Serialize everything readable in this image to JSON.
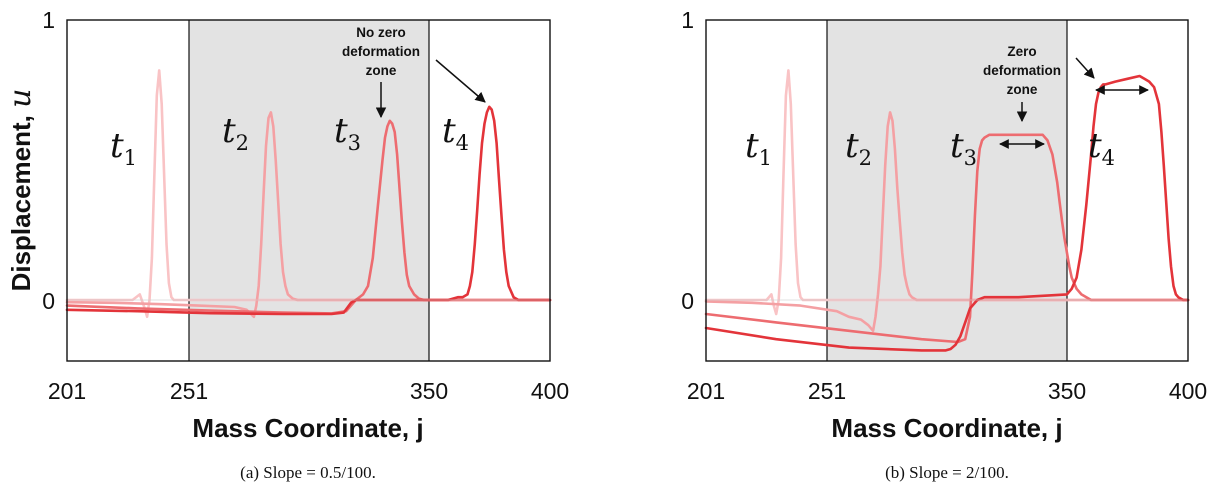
{
  "chart_data": [
    {
      "type": "line",
      "caption": "(a) Slope = 0.5/100.",
      "xlabel": "Mass Coordinate, j",
      "ylabel": "Displacement, ",
      "ylabel_symbol": "u",
      "xlim": [
        201,
        400
      ],
      "ylim": [
        -0.2,
        1
      ],
      "xticks": [
        201,
        251,
        350,
        400
      ],
      "yticks": [
        0,
        1
      ],
      "shaded_region": [
        251,
        350
      ],
      "grid": false,
      "series": [
        {
          "label_main": "t",
          "label_sub": "1",
          "color": "#f9c3c5",
          "x": [
            201,
            215,
            228,
            231,
            233,
            234,
            235,
            236,
            237,
            238,
            239,
            240,
            241,
            242,
            243,
            244,
            245,
            247,
            250,
            253,
            256,
            260,
            270,
            280,
            300,
            320,
            350,
            400
          ],
          "y": [
            0.0,
            0.0,
            0.0,
            0.02,
            -0.03,
            -0.06,
            0.0,
            0.15,
            0.45,
            0.73,
            0.82,
            0.7,
            0.45,
            0.2,
            0.06,
            0.01,
            0.0,
            0.0,
            0.0,
            0.0,
            0.0,
            0.0,
            0.0,
            0.0,
            0.0,
            0.0,
            0.0,
            0.0
          ]
        },
        {
          "label_main": "t",
          "label_sub": "2",
          "color": "#f4a0a3",
          "x": [
            201,
            220,
            240,
            255,
            270,
            275,
            278,
            279,
            280,
            281,
            282,
            283,
            284,
            285,
            286,
            287,
            288,
            289,
            290,
            291,
            292,
            294,
            296,
            300,
            320,
            350,
            400
          ],
          "y": [
            -0.008,
            -0.01,
            -0.015,
            -0.02,
            -0.025,
            -0.035,
            -0.06,
            -0.02,
            0.05,
            0.2,
            0.38,
            0.55,
            0.65,
            0.67,
            0.62,
            0.5,
            0.35,
            0.2,
            0.1,
            0.05,
            0.02,
            0.005,
            0.0,
            0.0,
            0.0,
            0.0,
            0.0
          ]
        },
        {
          "label_main": "t",
          "label_sub": "3",
          "color": "#ed6c70",
          "x": [
            201,
            230,
            260,
            290,
            310,
            316,
            320,
            323,
            325,
            327,
            329,
            331,
            332,
            333,
            334,
            335,
            336,
            337,
            338,
            339,
            340,
            341,
            342,
            344,
            346,
            348,
            350,
            400
          ],
          "y": [
            -0.02,
            -0.03,
            -0.038,
            -0.045,
            -0.048,
            -0.04,
            0.0,
            0.02,
            0.05,
            0.15,
            0.33,
            0.5,
            0.58,
            0.62,
            0.64,
            0.63,
            0.6,
            0.52,
            0.4,
            0.28,
            0.17,
            0.09,
            0.05,
            0.02,
            0.005,
            0.0,
            0.0,
            0.0
          ]
        },
        {
          "label_main": "t",
          "label_sub": "4",
          "color": "#e3343a",
          "x": [
            201,
            230,
            260,
            290,
            310,
            315,
            318,
            320,
            325,
            350,
            358,
            362,
            364,
            366,
            367,
            368,
            369,
            370,
            371,
            372,
            373,
            374,
            375,
            376,
            377,
            378,
            379,
            380,
            381,
            382,
            383,
            385,
            387,
            390,
            400
          ],
          "y": [
            -0.035,
            -0.04,
            -0.047,
            -0.05,
            -0.05,
            -0.045,
            -0.01,
            0.0,
            0.0,
            0.0,
            0.0,
            0.01,
            0.01,
            0.02,
            0.05,
            0.1,
            0.2,
            0.32,
            0.45,
            0.56,
            0.63,
            0.67,
            0.69,
            0.68,
            0.64,
            0.56,
            0.43,
            0.3,
            0.18,
            0.1,
            0.05,
            0.01,
            0.0,
            0.0,
            0.0
          ]
        }
      ],
      "annotations": [
        {
          "lines": [
            "No zero",
            "deformation",
            "zone"
          ]
        }
      ]
    },
    {
      "type": "line",
      "caption": "(b) Slope = 2/100.",
      "xlabel": "Mass Coordinate, j",
      "xlim": [
        201,
        400
      ],
      "ylim": [
        -0.2,
        1
      ],
      "xticks": [
        201,
        251,
        350,
        400
      ],
      "yticks": [
        0,
        1
      ],
      "shaded_region": [
        251,
        350
      ],
      "grid": false,
      "series": [
        {
          "label_main": "t",
          "label_sub": "1",
          "color": "#f9c3c5",
          "x": [
            201,
            215,
            226,
            228,
            229,
            230,
            231,
            232,
            233,
            234,
            235,
            236,
            237,
            238,
            239,
            240,
            241,
            243,
            246,
            250,
            400
          ],
          "y": [
            0.0,
            0.0,
            0.0,
            0.02,
            -0.02,
            -0.05,
            0.0,
            0.15,
            0.45,
            0.73,
            0.82,
            0.7,
            0.45,
            0.2,
            0.06,
            0.01,
            0.0,
            0.0,
            0.0,
            0.0,
            0.0
          ]
        },
        {
          "label_main": "t",
          "label_sub": "2",
          "color": "#f4a0a3",
          "x": [
            201,
            220,
            240,
            255,
            260,
            265,
            268,
            270,
            271,
            272,
            273,
            274,
            275,
            276,
            277,
            278,
            279,
            280,
            281,
            282,
            283,
            284,
            285,
            286,
            288,
            290,
            300,
            400
          ],
          "y": [
            -0.005,
            -0.01,
            -0.02,
            -0.04,
            -0.06,
            -0.07,
            -0.09,
            -0.11,
            -0.06,
            0.02,
            0.12,
            0.3,
            0.48,
            0.62,
            0.67,
            0.64,
            0.54,
            0.4,
            0.28,
            0.17,
            0.09,
            0.05,
            0.02,
            0.01,
            0.0,
            0.0,
            0.0,
            0.0
          ]
        },
        {
          "label_main": "t",
          "label_sub": "3",
          "color": "#ed6c70",
          "x": [
            201,
            230,
            260,
            290,
            305,
            308,
            310,
            311,
            312,
            313,
            314,
            315,
            316,
            318,
            320,
            330,
            340,
            342,
            344,
            346,
            347,
            348,
            349,
            350,
            351,
            352,
            354,
            356,
            360,
            400
          ],
          "y": [
            -0.05,
            -0.08,
            -0.11,
            -0.14,
            -0.15,
            -0.14,
            -0.06,
            0.1,
            0.3,
            0.46,
            0.54,
            0.57,
            0.58,
            0.59,
            0.59,
            0.59,
            0.59,
            0.57,
            0.52,
            0.42,
            0.35,
            0.28,
            0.22,
            0.17,
            0.12,
            0.08,
            0.04,
            0.02,
            0.0,
            0.0
          ]
        },
        {
          "label_main": "t",
          "label_sub": "4",
          "color": "#e3343a",
          "x": [
            201,
            230,
            260,
            290,
            300,
            302,
            304,
            306,
            308,
            310,
            313,
            316,
            320,
            330,
            350,
            352,
            354,
            356,
            358,
            360,
            361,
            362,
            363,
            364,
            365,
            366,
            370,
            375,
            380,
            382,
            384,
            386,
            388,
            389,
            390,
            391,
            392,
            393,
            394,
            395,
            396,
            398,
            400
          ],
          "y": [
            -0.1,
            -0.14,
            -0.17,
            -0.18,
            -0.18,
            -0.175,
            -0.16,
            -0.13,
            -0.08,
            -0.03,
            0.0,
            0.01,
            0.01,
            0.01,
            0.02,
            0.04,
            0.08,
            0.18,
            0.34,
            0.52,
            0.62,
            0.7,
            0.74,
            0.76,
            0.77,
            0.77,
            0.78,
            0.79,
            0.8,
            0.79,
            0.78,
            0.76,
            0.7,
            0.6,
            0.48,
            0.35,
            0.22,
            0.12,
            0.05,
            0.02,
            0.01,
            0.0,
            0.0
          ]
        }
      ],
      "annotations": [
        {
          "lines": [
            "Zero",
            "deformation",
            "zone"
          ]
        }
      ]
    }
  ]
}
